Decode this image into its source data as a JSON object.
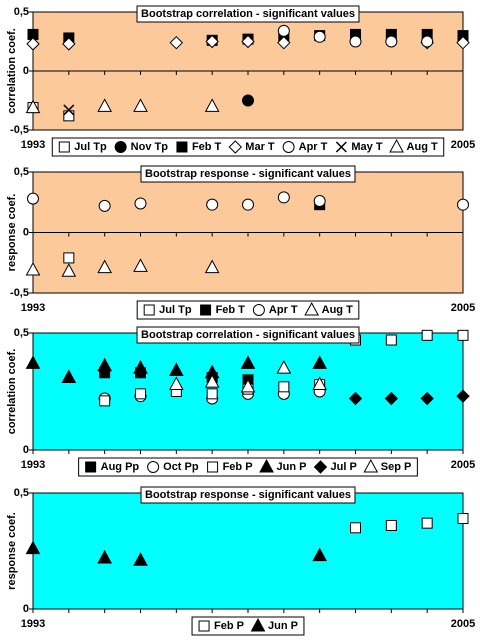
{
  "chart_data": [
    {
      "type": "scatter",
      "title": "Bootstrap correlation - significant values",
      "ylabel": "correlation coef.",
      "background": "#fcc99b",
      "xlim": [
        1993,
        2005
      ],
      "xticks": [
        1993,
        2005
      ],
      "ylim": [
        -0.5,
        0.5
      ],
      "yticks": [
        {
          "value": -0.5,
          "label": "-0,5"
        },
        0,
        {
          "value": 0.5,
          "label": "0,5"
        }
      ],
      "series": [
        {
          "name": "Jul Tp",
          "marker": "square",
          "filled": false,
          "color": "#000000",
          "x": [
            1993,
            1994
          ],
          "values": [
            -0.31,
            -0.38
          ]
        },
        {
          "name": "Nov Tp",
          "marker": "circle",
          "filled": true,
          "color": "#000000",
          "x": [
            1999
          ],
          "values": [
            -0.25
          ]
        },
        {
          "name": "Feb T",
          "marker": "square",
          "filled": true,
          "color": "#000000",
          "x": [
            1993,
            1994,
            1998,
            1999,
            2000,
            2001,
            2002,
            2003,
            2004,
            2005
          ],
          "values": [
            0.31,
            0.28,
            0.26,
            0.27,
            0.29,
            0.3,
            0.31,
            0.31,
            0.31,
            0.3
          ]
        },
        {
          "name": "Mar T",
          "marker": "diamond",
          "filled": false,
          "color": "#000000",
          "x": [
            1993,
            1994,
            1997,
            1998,
            1999,
            2000,
            2004,
            2005
          ],
          "values": [
            0.23,
            0.23,
            0.24,
            0.25,
            0.25,
            0.24,
            0.24,
            0.24
          ]
        },
        {
          "name": "Apr T",
          "marker": "circle",
          "filled": false,
          "color": "#000000",
          "x": [
            2000,
            2001,
            2002,
            2003,
            2004
          ],
          "values": [
            0.34,
            0.29,
            0.25,
            0.25,
            0.25
          ]
        },
        {
          "name": "May T",
          "marker": "x",
          "filled": false,
          "color": "#000000",
          "x": [
            1994
          ],
          "values": [
            -0.33
          ]
        },
        {
          "name": "Aug T",
          "marker": "triangle",
          "filled": false,
          "color": "#000000",
          "x": [
            1993,
            1995,
            1996,
            1998
          ],
          "values": [
            -0.31,
            -0.3,
            -0.3,
            -0.3
          ]
        }
      ]
    },
    {
      "type": "scatter",
      "title": "Bootstrap response - significant values",
      "ylabel": "response coef.",
      "background": "#fcc99b",
      "xlim": [
        1993,
        2005
      ],
      "xticks": [
        1993,
        2005
      ],
      "ylim": [
        -0.5,
        0.5
      ],
      "yticks": [
        {
          "value": -0.5,
          "label": "-0,5"
        },
        0,
        {
          "value": 0.5,
          "label": "0,5"
        }
      ],
      "series": [
        {
          "name": "Jul Tp",
          "marker": "square",
          "filled": false,
          "color": "#000000",
          "x": [
            1994
          ],
          "values": [
            -0.21
          ]
        },
        {
          "name": "Feb T",
          "marker": "square",
          "filled": true,
          "color": "#000000",
          "x": [
            2001
          ],
          "values": [
            0.23
          ]
        },
        {
          "name": "Apr T",
          "marker": "circle",
          "filled": false,
          "color": "#000000",
          "x": [
            1993,
            1995,
            1996,
            1998,
            1999,
            2000,
            2001,
            2005
          ],
          "values": [
            0.28,
            0.22,
            0.24,
            0.23,
            0.23,
            0.29,
            0.26,
            0.23
          ]
        },
        {
          "name": "Aug T",
          "marker": "triangle",
          "filled": false,
          "color": "#000000",
          "x": [
            1993,
            1994,
            1995,
            1996,
            1998
          ],
          "values": [
            -0.31,
            -0.32,
            -0.29,
            -0.28,
            -0.29
          ]
        }
      ]
    },
    {
      "type": "scatter",
      "title": "Bootstrap correlation - significant values",
      "ylabel": "correlation coef.",
      "background": "#00ffff",
      "xlim": [
        1993,
        2005
      ],
      "xticks": [
        1993,
        2005
      ],
      "ylim": [
        0,
        0.5
      ],
      "yticks": [
        0,
        {
          "value": 0.5,
          "label": "0,5"
        }
      ],
      "series": [
        {
          "name": "Aug Pp",
          "marker": "square",
          "filled": true,
          "color": "#000000",
          "x": [
            1995,
            1996,
            1998,
            1999
          ],
          "values": [
            0.33,
            0.33,
            0.31,
            0.3
          ]
        },
        {
          "name": "Oct Pp",
          "marker": "circle",
          "filled": false,
          "color": "#000000",
          "x": [
            1995,
            1996,
            1998,
            1999,
            2000,
            2001
          ],
          "values": [
            0.22,
            0.23,
            0.22,
            0.24,
            0.24,
            0.25
          ]
        },
        {
          "name": "Feb P",
          "marker": "square",
          "filled": false,
          "color": "#000000",
          "x": [
            1995,
            1996,
            1997,
            1998,
            1999,
            2000,
            2001,
            2002,
            2003,
            2004,
            2005
          ],
          "values": [
            0.21,
            0.24,
            0.25,
            0.24,
            0.26,
            0.27,
            0.28,
            0.47,
            0.47,
            0.49,
            0.49
          ]
        },
        {
          "name": "Jun P",
          "marker": "triangle",
          "filled": true,
          "color": "#000000",
          "x": [
            1993,
            1994,
            1995,
            1996,
            1997,
            1998,
            1999,
            2001
          ],
          "values": [
            0.37,
            0.31,
            0.36,
            0.35,
            0.34,
            0.33,
            0.37,
            0.37
          ]
        },
        {
          "name": "Jul P",
          "marker": "diamond",
          "filled": true,
          "color": "#000000",
          "x": [
            2002,
            2003,
            2004,
            2005
          ],
          "values": [
            0.22,
            0.22,
            0.22,
            0.23
          ]
        },
        {
          "name": "Sep P",
          "marker": "triangle",
          "filled": false,
          "color": "#000000",
          "x": [
            1997,
            1998,
            1999,
            2000,
            2001
          ],
          "values": [
            0.28,
            0.29,
            0.27,
            0.35,
            0.28
          ]
        }
      ]
    },
    {
      "type": "scatter",
      "title": "Bootstrap response - significant values",
      "ylabel": "response coef.",
      "background": "#00ffff",
      "xlim": [
        1993,
        2005
      ],
      "xticks": [
        1993,
        2005
      ],
      "ylim": [
        0,
        0.5
      ],
      "yticks": [
        0,
        {
          "value": 0.5,
          "label": "0,5"
        }
      ],
      "series": [
        {
          "name": "Feb P",
          "marker": "square",
          "filled": false,
          "color": "#000000",
          "x": [
            2002,
            2003,
            2004,
            2005
          ],
          "values": [
            0.35,
            0.36,
            0.37,
            0.39
          ]
        },
        {
          "name": "Jun P",
          "marker": "triangle",
          "filled": true,
          "color": "#000000",
          "x": [
            1993,
            1995,
            1996,
            2001
          ],
          "values": [
            0.26,
            0.22,
            0.21,
            0.23
          ]
        }
      ]
    }
  ]
}
